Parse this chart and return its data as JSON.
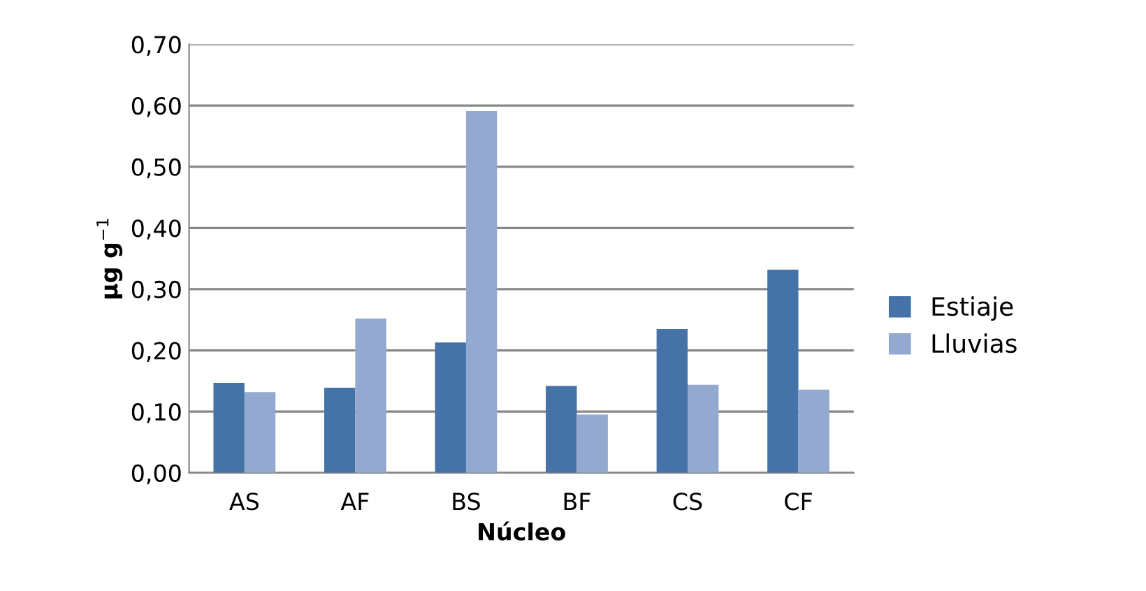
{
  "chart_data": {
    "type": "bar",
    "xlabel": "Núcleo",
    "ylabel": "µg g$^{−1}$",
    "categories": [
      "AS",
      "AF",
      "BS",
      "BF",
      "CS",
      "CF"
    ],
    "series": [
      {
        "name": "Estiaje",
        "color": "#4572a7",
        "values": [
          0.147,
          0.139,
          0.213,
          0.142,
          0.235,
          0.332
        ]
      },
      {
        "name": "Lluvias",
        "color": "#93a9cf",
        "values": [
          0.132,
          0.252,
          0.591,
          0.095,
          0.144,
          0.136
        ]
      }
    ],
    "ylim": [
      0,
      0.7
    ],
    "yticks": [
      {
        "value": 0,
        "label": "0,00"
      },
      {
        "value": 0.1,
        "label": "0,10"
      },
      {
        "value": 0.2,
        "label": "0,20"
      },
      {
        "value": 0.3,
        "label": "0,30"
      },
      {
        "value": 0.4,
        "label": "0,40"
      },
      {
        "value": 0.5,
        "label": "0,50"
      },
      {
        "value": 0.6,
        "label": "0,60"
      },
      {
        "value": 0.7,
        "label": "0,70"
      }
    ],
    "grid": "y",
    "legend": "right"
  }
}
